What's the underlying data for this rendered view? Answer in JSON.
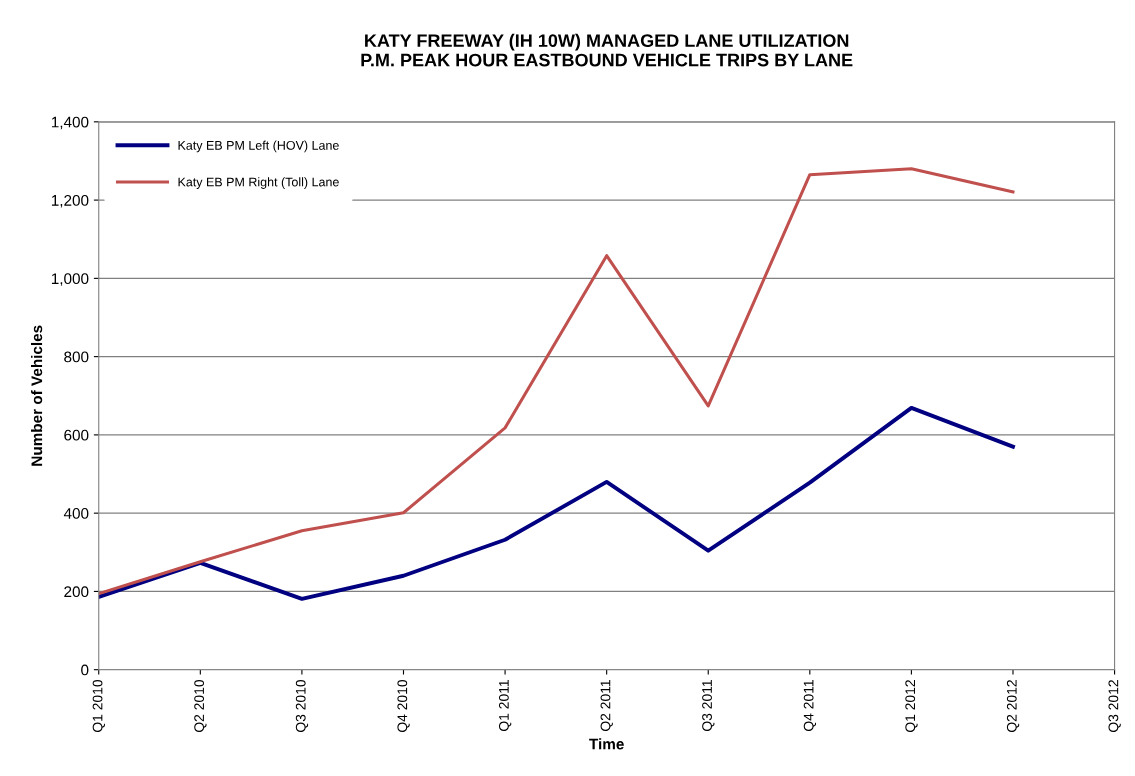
{
  "chart_data": {
    "type": "line",
    "title": "KATY FREEWAY (IH 10W) MANAGED LANE UTILIZATION\nP.M. PEAK HOUR EASTBOUND VEHICLE TRIPS BY LANE",
    "xlabel": "Time",
    "ylabel": "Number of Vehicles",
    "categories": [
      "Q1 2010",
      "Q2 2010",
      "Q3 2010",
      "Q4 2010",
      "Q1 2011",
      "Q2 2011",
      "Q3 2011",
      "Q4 2011",
      "Q1 2012",
      "Q2 2012",
      "Q3 2012"
    ],
    "series": [
      {
        "name": "Katy EB PM Left (HOV) Lane",
        "color": "#000080",
        "values": [
          186,
          273,
          181,
          240,
          332,
          480,
          304,
          478,
          669,
          570,
          null
        ]
      },
      {
        "name": "Katy EB PM Right (Toll) Lane",
        "color": "#c0504d",
        "values": [
          194,
          276,
          355,
          401,
          618,
          1058,
          674,
          1265,
          1280,
          1221,
          null
        ]
      }
    ],
    "ylim": [
      0,
      1400
    ],
    "yticks": [
      {
        "value": 0,
        "label": "0"
      },
      {
        "value": 200,
        "label": "200"
      },
      {
        "value": 400,
        "label": "400"
      },
      {
        "value": 600,
        "label": "600"
      },
      {
        "value": 800,
        "label": "800"
      },
      {
        "value": 1000,
        "label": "1,000"
      },
      {
        "value": 1200,
        "label": "1,200"
      },
      {
        "value": 1400,
        "label": "1,400"
      }
    ],
    "grid": "y",
    "legend": "top left",
    "marker": "none",
    "line_style": "solid"
  }
}
